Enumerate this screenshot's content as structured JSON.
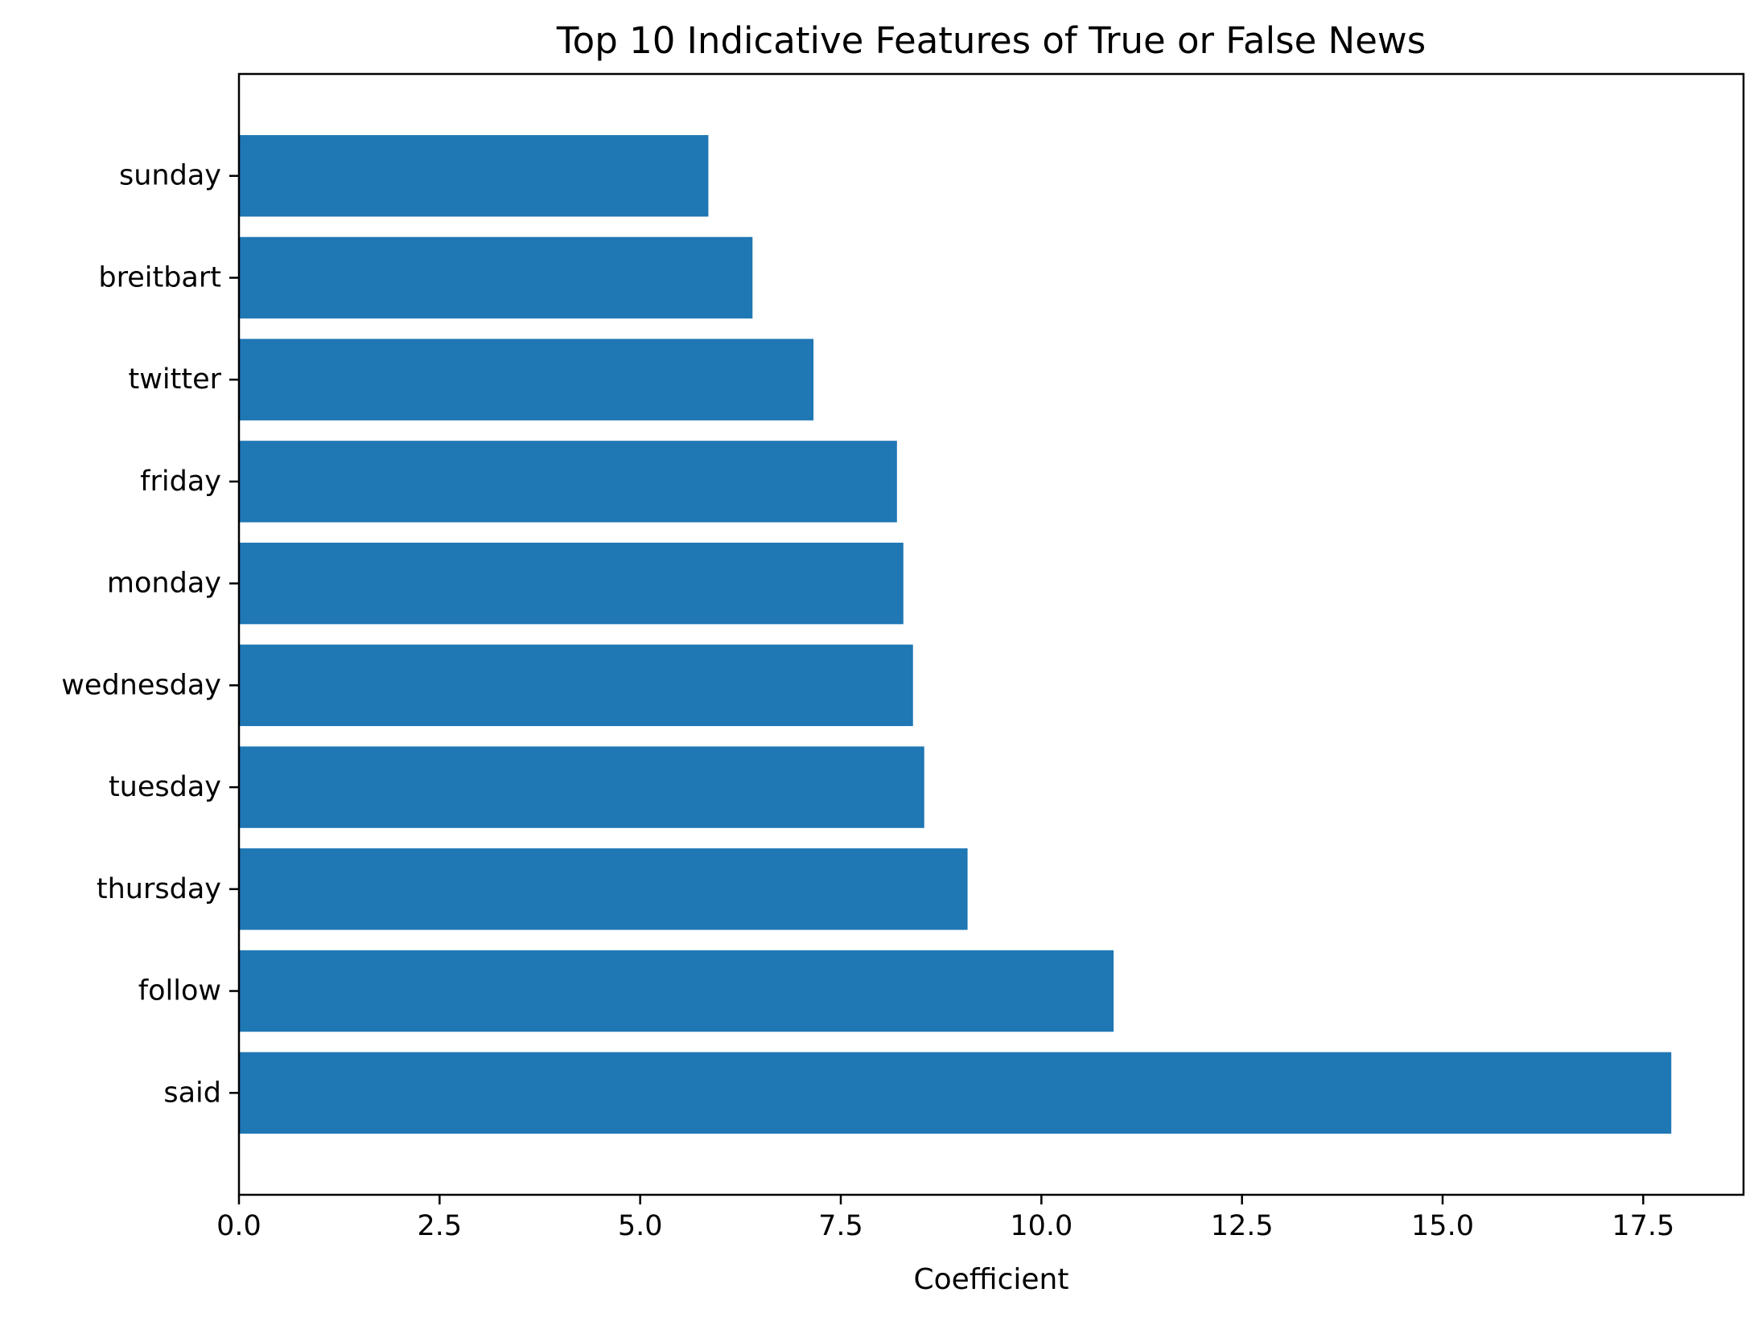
{
  "chart_data": {
    "type": "bar",
    "orientation": "horizontal",
    "title": "Top 10 Indicative Features of True or False News",
    "xlabel": "Coefficient",
    "ylabel": "",
    "categories": [
      "said",
      "follow",
      "thursday",
      "tuesday",
      "wednesday",
      "monday",
      "friday",
      "twitter",
      "breitbart",
      "sunday"
    ],
    "values": [
      17.85,
      10.9,
      9.08,
      8.54,
      8.4,
      8.28,
      8.2,
      7.16,
      6.4,
      5.85
    ],
    "xlim": [
      0,
      18.75
    ],
    "xticks": [
      0.0,
      2.5,
      5.0,
      7.5,
      10.0,
      12.5,
      15.0,
      17.5
    ],
    "xtick_labels": [
      "0.0",
      "2.5",
      "5.0",
      "7.5",
      "10.0",
      "12.5",
      "15.0",
      "17.5"
    ],
    "grid": false,
    "legend": "none",
    "bar_color": "#1f77b4"
  }
}
